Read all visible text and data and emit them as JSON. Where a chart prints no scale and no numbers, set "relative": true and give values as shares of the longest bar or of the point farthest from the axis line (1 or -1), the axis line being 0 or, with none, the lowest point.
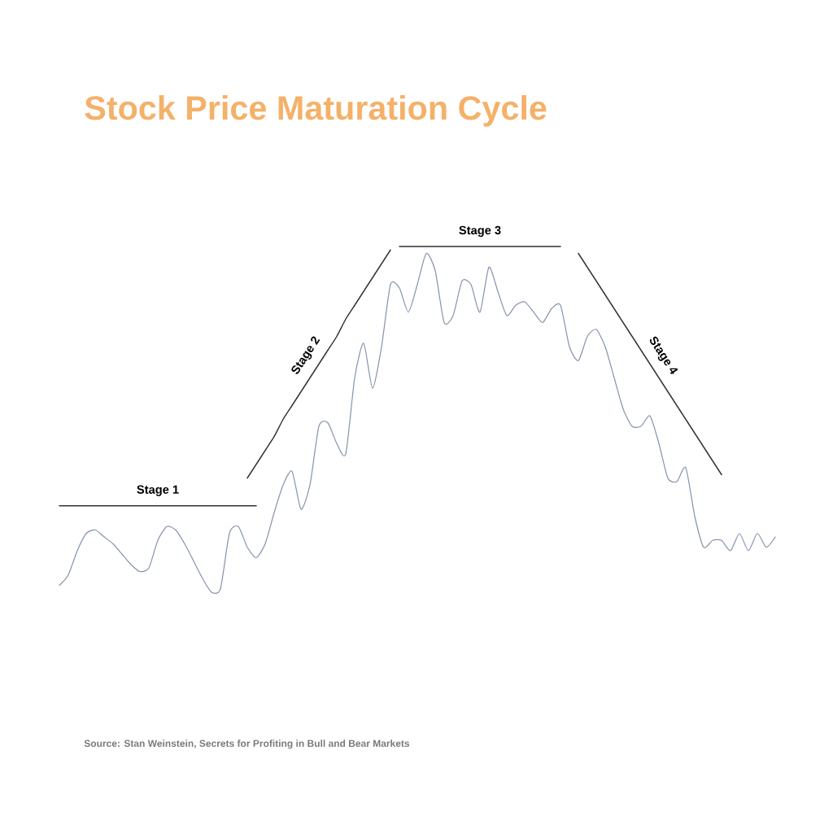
{
  "chart_data": {
    "type": "line",
    "title": "Stock Price Maturation Cycle",
    "annotations": [
      "Source: Stan Weinstein, Secrets for Profiting in Bull and Bear Markets"
    ],
    "relative": true,
    "categories": [
      null,
      null,
      null,
      null,
      null,
      null,
      null,
      null,
      null,
      null,
      null,
      null,
      null,
      null,
      null,
      null,
      null,
      null,
      null,
      null,
      null,
      null,
      null,
      null,
      null,
      null,
      null,
      null,
      null,
      null,
      null,
      null,
      null,
      null,
      null,
      null,
      null,
      null,
      null,
      null,
      null,
      null,
      null,
      null,
      null,
      null,
      null,
      null,
      null,
      null,
      null,
      null,
      null,
      null,
      null,
      null,
      null,
      null,
      null,
      null,
      null,
      null,
      null,
      null,
      null,
      null,
      null,
      null,
      null,
      null,
      null,
      null,
      null,
      null,
      null,
      null,
      null,
      null,
      null,
      null,
      null
    ],
    "series": [
      {
        "color": "#8593ad",
        "values": [
          0.02,
          0.05,
          0.12,
          0.17,
          0.18,
          0.16,
          0.14,
          0.11,
          0.08,
          0.06,
          0.07,
          0.15,
          0.19,
          0.18,
          0.14,
          0.09,
          0.04,
          0.0,
          0.01,
          0.17,
          0.19,
          0.13,
          0.1,
          0.14,
          0.23,
          0.31,
          0.35,
          0.24,
          0.31,
          0.48,
          0.49,
          0.43,
          0.4,
          0.62,
          0.72,
          0.59,
          0.71,
          0.89,
          0.88,
          0.81,
          0.89,
          0.98,
          0.93,
          0.78,
          0.8,
          0.9,
          0.89,
          0.81,
          0.94,
          0.87,
          0.8,
          0.83,
          0.84,
          0.81,
          0.78,
          0.82,
          0.83,
          0.71,
          0.67,
          0.74,
          0.76,
          0.71,
          0.62,
          0.53,
          0.48,
          0.48,
          0.51,
          0.43,
          0.33,
          0.32,
          0.36,
          0.22,
          0.13,
          0.15,
          0.15,
          0.12,
          0.17,
          0.12,
          0.17,
          0.13,
          0.16
        ]
      },
      {
        "type": "line",
        "name": "Stage 1",
        "color": "#333333",
        "values": [
          0.25,
          0.25,
          0.25,
          0.25,
          0.25,
          0.25,
          0.25,
          0.25,
          0.25,
          0.25,
          0.25,
          0.25,
          0.25,
          0.25,
          0.25,
          0.25,
          0.25,
          0.25,
          0.25,
          0.25,
          0.25,
          0.25,
          0.25,
          null,
          null,
          null,
          null,
          null,
          null,
          null,
          null,
          null,
          null,
          null,
          null,
          null,
          null,
          null,
          null,
          null,
          null,
          null,
          null,
          null,
          null,
          null,
          null,
          null,
          null,
          null,
          null,
          null,
          null,
          null,
          null,
          null,
          null,
          null,
          null,
          null,
          null,
          null,
          null,
          null,
          null,
          null,
          null,
          null,
          null,
          null,
          null,
          null,
          null,
          null,
          null,
          null,
          null,
          null,
          null,
          null,
          null
        ]
      },
      {
        "type": "line",
        "name": "Stage 2",
        "color": "#333333",
        "values": [
          null,
          null,
          null,
          null,
          null,
          null,
          null,
          null,
          null,
          null,
          null,
          null,
          null,
          null,
          null,
          null,
          null,
          null,
          null,
          null,
          null,
          0.33,
          0.37,
          0.41,
          0.45,
          0.5,
          0.54,
          0.58,
          0.62,
          0.66,
          0.7,
          0.74,
          0.79,
          0.83,
          0.87,
          0.91,
          0.95,
          0.99,
          null,
          null,
          null,
          null,
          null,
          null,
          null,
          null,
          null,
          null,
          null,
          null,
          null,
          null,
          null,
          null,
          null,
          null,
          null,
          null,
          null,
          null,
          null,
          null,
          null,
          null,
          null,
          null,
          null,
          null,
          null,
          null,
          null,
          null,
          null,
          null,
          null,
          null,
          null,
          null,
          null,
          null,
          null
        ]
      },
      {
        "type": "line",
        "name": "Stage 3",
        "color": "#333333",
        "values": [
          null,
          null,
          null,
          null,
          null,
          null,
          null,
          null,
          null,
          null,
          null,
          null,
          null,
          null,
          null,
          null,
          null,
          null,
          null,
          null,
          null,
          null,
          null,
          null,
          null,
          null,
          null,
          null,
          null,
          null,
          null,
          null,
          null,
          null,
          null,
          null,
          null,
          null,
          1.0,
          1.0,
          1.0,
          1.0,
          1.0,
          1.0,
          1.0,
          1.0,
          1.0,
          1.0,
          1.0,
          1.0,
          1.0,
          1.0,
          1.0,
          1.0,
          1.0,
          1.0,
          1.0,
          null,
          null,
          null,
          null,
          null,
          null,
          null,
          null,
          null,
          null,
          null,
          null,
          null,
          null,
          null,
          null,
          null,
          null,
          null,
          null,
          null,
          null,
          null,
          null
        ]
      },
      {
        "type": "line",
        "name": "Stage 4",
        "color": "#333333",
        "values": [
          null,
          null,
          null,
          null,
          null,
          null,
          null,
          null,
          null,
          null,
          null,
          null,
          null,
          null,
          null,
          null,
          null,
          null,
          null,
          null,
          null,
          null,
          null,
          null,
          null,
          null,
          null,
          null,
          null,
          null,
          null,
          null,
          null,
          null,
          null,
          null,
          null,
          null,
          null,
          null,
          null,
          null,
          null,
          null,
          null,
          null,
          null,
          null,
          null,
          null,
          null,
          null,
          null,
          null,
          null,
          null,
          null,
          null,
          0.98,
          0.94,
          0.9,
          0.86,
          0.82,
          0.78,
          0.74,
          0.7,
          0.66,
          0.62,
          0.58,
          0.54,
          0.5,
          0.46,
          0.42,
          0.38,
          0.34,
          null,
          null,
          null,
          null,
          null,
          null
        ]
      }
    ]
  }
}
